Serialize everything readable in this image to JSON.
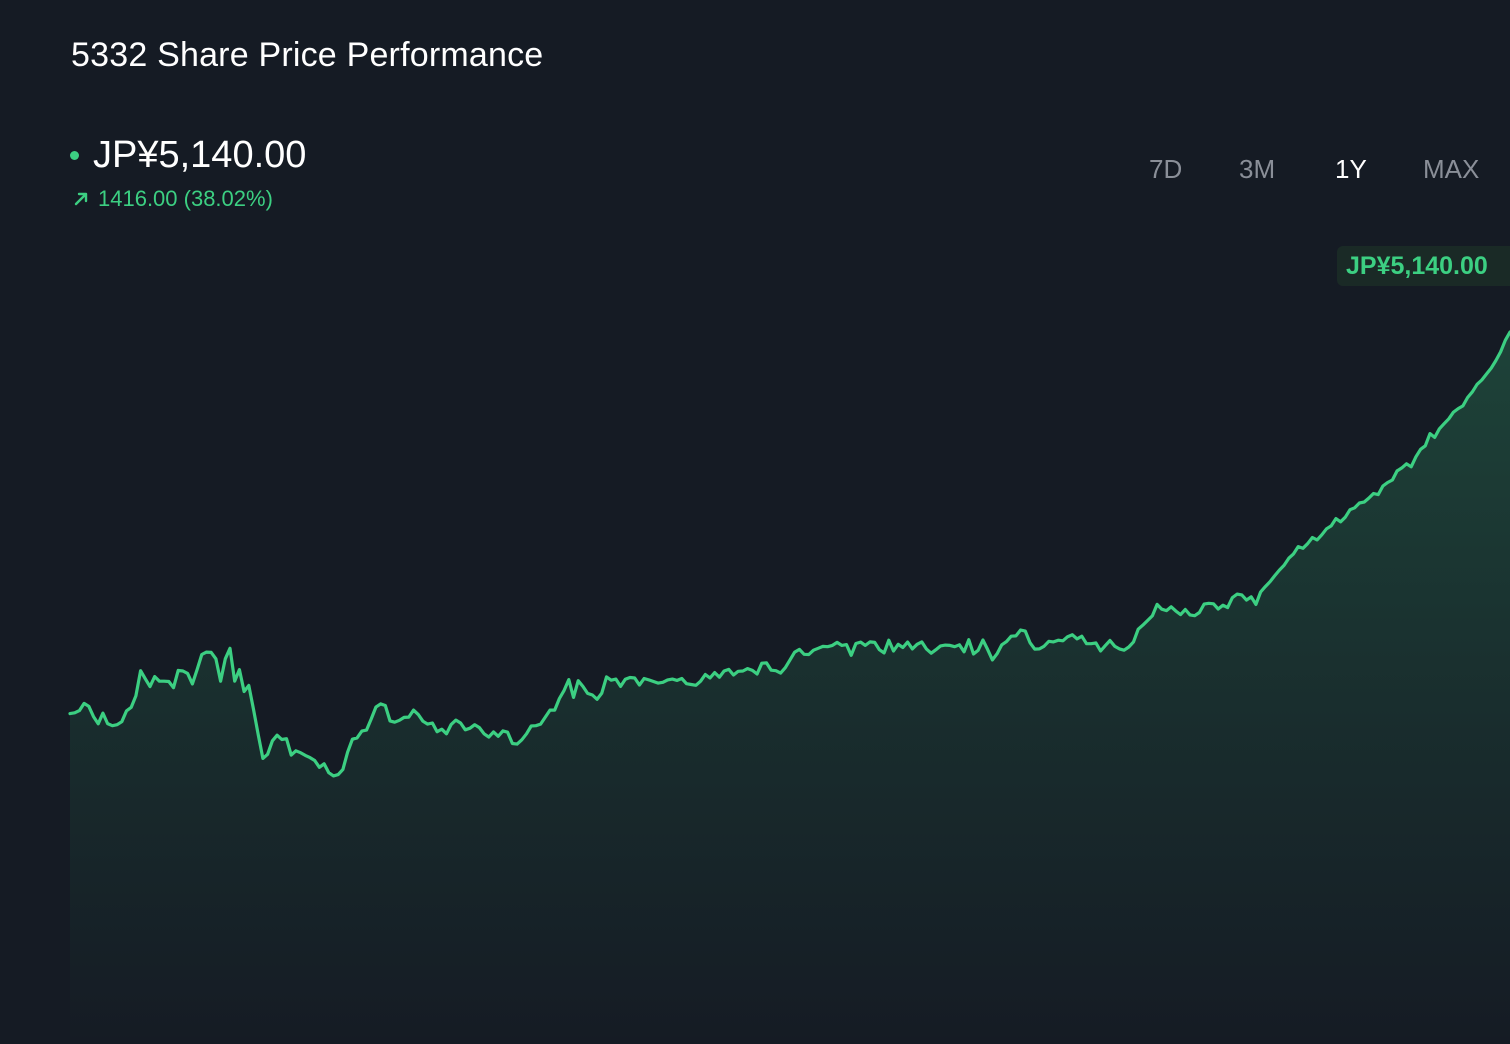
{
  "header": {
    "title": "5332 Share Price Performance"
  },
  "price": {
    "current": "JP¥5,140.00",
    "change": "1416.00 (38.02%)",
    "tag": "JP¥5,140.00",
    "trend_icon": "arrow-up-right-icon"
  },
  "tabs": [
    {
      "label": "7D",
      "active": false
    },
    {
      "label": "3M",
      "active": false
    },
    {
      "label": "1Y",
      "active": true
    },
    {
      "label": "MAX",
      "active": false
    }
  ],
  "colors": {
    "background": "#151b24",
    "accent": "#3ccf82",
    "tab_inactive": "#8a8f98",
    "tab_active": "#ffffff"
  },
  "chart_data": {
    "type": "area",
    "title": "5332 Share Price Performance",
    "period": "1Y",
    "currency": "JP¥",
    "grid": false,
    "legend": "none",
    "ylim": [
      2500,
      6000
    ],
    "last_value": 5140.0,
    "change": 1416.0,
    "change_pct": 38.02,
    "values": [
      3725,
      3728,
      3736,
      3763,
      3752,
      3714,
      3687,
      3727,
      3688,
      3680,
      3684,
      3695,
      3735,
      3748,
      3791,
      3884,
      3854,
      3825,
      3862,
      3845,
      3845,
      3844,
      3821,
      3885,
      3883,
      3874,
      3835,
      3888,
      3944,
      3953,
      3952,
      3928,
      3845,
      3928,
      3967,
      3845,
      3888,
      3807,
      3829,
      3741,
      3647,
      3559,
      3574,
      3624,
      3645,
      3629,
      3632,
      3571,
      3587,
      3580,
      3570,
      3562,
      3551,
      3526,
      3539,
      3506,
      3494,
      3499,
      3518,
      3582,
      3630,
      3635,
      3660,
      3664,
      3705,
      3749,
      3761,
      3755,
      3698,
      3693,
      3700,
      3711,
      3712,
      3738,
      3722,
      3697,
      3686,
      3690,
      3658,
      3667,
      3650,
      3685,
      3701,
      3690,
      3665,
      3671,
      3684,
      3673,
      3650,
      3638,
      3657,
      3641,
      3661,
      3656,
      3614,
      3612,
      3628,
      3650,
      3679,
      3680,
      3686,
      3712,
      3738,
      3738,
      3781,
      3811,
      3851,
      3785,
      3847,
      3826,
      3800,
      3794,
      3778,
      3801,
      3861,
      3849,
      3853,
      3826,
      3852,
      3859,
      3857,
      3831,
      3855,
      3850,
      3844,
      3838,
      3841,
      3850,
      3853,
      3848,
      3855,
      3836,
      3833,
      3830,
      3845,
      3870,
      3857,
      3877,
      3860,
      3883,
      3889,
      3868,
      3882,
      3883,
      3892,
      3885,
      3872,
      3912,
      3913,
      3886,
      3884,
      3875,
      3895,
      3924,
      3953,
      3963,
      3945,
      3944,
      3960,
      3967,
      3974,
      3973,
      3978,
      3989,
      3978,
      3981,
      3941,
      3985,
      3990,
      3978,
      3991,
      3989,
      3962,
      3950,
      3997,
      3957,
      3982,
      3970,
      3990,
      3965,
      3982,
      3991,
      3964,
      3949,
      3962,
      3976,
      3979,
      3978,
      3973,
      3980,
      3954,
      3999,
      3946,
      3960,
      3998,
      3963,
      3924,
      3947,
      3980,
      3992,
      4012,
      4013,
      4035,
      4031,
      3988,
      3964,
      3965,
      3975,
      3993,
      3991,
      3997,
      3995,
      4010,
      4017,
      4002,
      4012,
      3984,
      3984,
      3987,
      3957,
      3977,
      3996,
      3975,
      3965,
      3960,
      3972,
      3991,
      4038,
      4053,
      4070,
      4088,
      4130,
      4112,
      4107,
      4121,
      4105,
      4092,
      4111,
      4091,
      4088,
      4100,
      4131,
      4134,
      4132,
      4113,
      4127,
      4118,
      4155,
      4168,
      4165,
      4146,
      4158,
      4130,
      4176,
      4196,
      4214,
      4236,
      4257,
      4275,
      4301,
      4317,
      4344,
      4338,
      4355,
      4378,
      4369,
      4388,
      4410,
      4421,
      4448,
      4436,
      4453,
      4481,
      4488,
      4506,
      4509,
      4524,
      4541,
      4537,
      4569,
      4582,
      4591,
      4625,
      4636,
      4651,
      4640,
      4677,
      4705,
      4718,
      4763,
      4749,
      4781,
      4800,
      4818,
      4843,
      4856,
      4866,
      4897,
      4918,
      4946,
      4962,
      4984,
      5006,
      5034,
      5066,
      5109,
      5140
    ]
  }
}
